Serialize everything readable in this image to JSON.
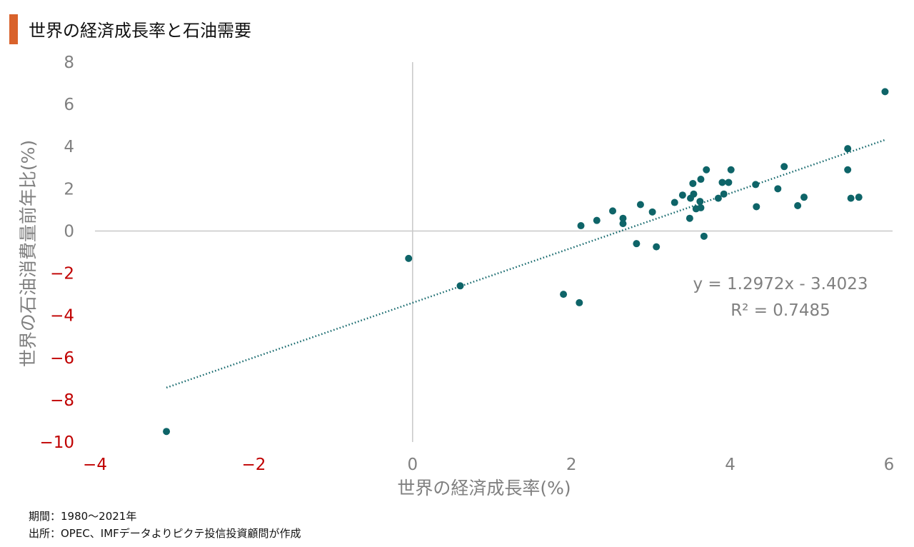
{
  "title": "世界の経済成長率と石油需要",
  "footnotes": {
    "period": "期間：1980～2021年",
    "source": "出所：OPEC、IMFデータよりピクテ投信投資顧問が作成"
  },
  "colors": {
    "accent": "#d9622b",
    "point": "#0e6468",
    "trendline": "#0e6468",
    "negative_tick": "#c00000",
    "positive_tick": "#808080",
    "axis_line": "#c8c8c8"
  },
  "chart_data": {
    "type": "scatter",
    "xlabel": "世界の経済成長率(%)",
    "ylabel": "世界の石油消費量前年比(%)",
    "xlim": [
      -4,
      6
    ],
    "ylim": [
      -10,
      8
    ],
    "xticks": [
      -4,
      -2,
      0,
      2,
      4,
      6
    ],
    "yticks": [
      -10,
      -8,
      -6,
      -4,
      -2,
      0,
      2,
      4,
      6,
      8
    ],
    "grid": false,
    "points": [
      {
        "x": -3.1,
        "y": -9.5
      },
      {
        "x": -0.05,
        "y": -1.3
      },
      {
        "x": 0.6,
        "y": -2.6
      },
      {
        "x": 1.9,
        "y": -3.0
      },
      {
        "x": 2.1,
        "y": -3.4
      },
      {
        "x": 2.12,
        "y": 0.25
      },
      {
        "x": 2.32,
        "y": 0.5
      },
      {
        "x": 2.52,
        "y": 0.95
      },
      {
        "x": 2.65,
        "y": 0.6
      },
      {
        "x": 2.65,
        "y": 0.35
      },
      {
        "x": 2.82,
        "y": -0.6
      },
      {
        "x": 2.87,
        "y": 1.25
      },
      {
        "x": 3.02,
        "y": 0.9
      },
      {
        "x": 3.07,
        "y": -0.75
      },
      {
        "x": 3.3,
        "y": 1.35
      },
      {
        "x": 3.4,
        "y": 1.7
      },
      {
        "x": 3.49,
        "y": 0.6
      },
      {
        "x": 3.5,
        "y": 1.55
      },
      {
        "x": 3.53,
        "y": 2.25
      },
      {
        "x": 3.54,
        "y": 1.75
      },
      {
        "x": 3.57,
        "y": 1.05
      },
      {
        "x": 3.62,
        "y": 1.4
      },
      {
        "x": 3.63,
        "y": 2.45
      },
      {
        "x": 3.63,
        "y": 1.1
      },
      {
        "x": 3.67,
        "y": -0.25
      },
      {
        "x": 3.7,
        "y": 2.9
      },
      {
        "x": 3.85,
        "y": 1.55
      },
      {
        "x": 3.9,
        "y": 2.3
      },
      {
        "x": 3.92,
        "y": 1.75
      },
      {
        "x": 3.98,
        "y": 2.3
      },
      {
        "x": 4.01,
        "y": 2.9
      },
      {
        "x": 4.32,
        "y": 2.2
      },
      {
        "x": 4.33,
        "y": 1.15
      },
      {
        "x": 4.6,
        "y": 2.0
      },
      {
        "x": 4.68,
        "y": 3.05
      },
      {
        "x": 4.85,
        "y": 1.2
      },
      {
        "x": 4.93,
        "y": 1.6
      },
      {
        "x": 5.48,
        "y": 3.9
      },
      {
        "x": 5.48,
        "y": 2.9
      },
      {
        "x": 5.52,
        "y": 1.55
      },
      {
        "x": 5.62,
        "y": 1.6
      },
      {
        "x": 5.95,
        "y": 6.6
      }
    ],
    "trendline": {
      "slope": 1.2972,
      "intercept": -3.4023,
      "x_range": [
        -3.1,
        5.95
      ],
      "equation": "y = 1.2972x - 3.4023",
      "r_squared": "R² = 0.7485"
    }
  }
}
